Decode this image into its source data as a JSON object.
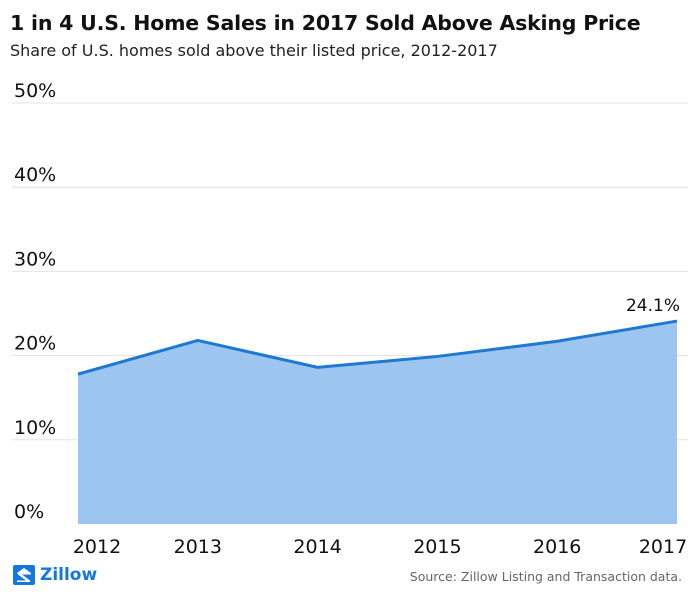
{
  "title": "1 in 4 U.S. Home Sales in 2017 Sold Above Asking Price",
  "subtitle": "Share of U.S. homes sold above their listed price, 2012-2017",
  "source": "Source: Zillow Listing and Transaction data.",
  "brand": "Zillow",
  "colors": {
    "line": "#1f78d1",
    "area": "#9cc5f0",
    "grid": "#e3e3e3",
    "brand": "#1277e1"
  },
  "chart_data": {
    "type": "area",
    "x": [
      "2012",
      "2013",
      "2014",
      "2015",
      "2016",
      "2017"
    ],
    "values": [
      17.8,
      21.8,
      18.6,
      19.9,
      21.7,
      24.1
    ],
    "ylim": [
      0,
      50
    ],
    "yticks": [
      0,
      10,
      20,
      30,
      40,
      50
    ],
    "ytick_labels": [
      "0%",
      "10%",
      "20%",
      "30%",
      "40%",
      "50%"
    ],
    "data_labels": [
      {
        "x": "2017",
        "label": "24.1%"
      }
    ],
    "grid": true,
    "legend": "none"
  }
}
